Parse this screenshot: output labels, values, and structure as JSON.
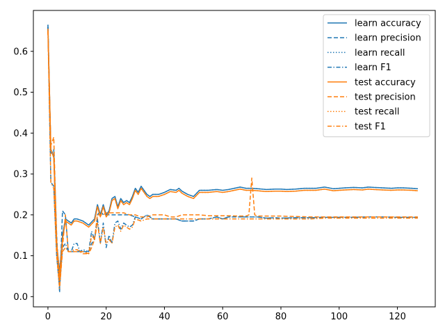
{
  "chart_data": {
    "type": "line",
    "title": "",
    "xlabel": "",
    "ylabel": "",
    "xlim": [
      -5,
      133
    ],
    "ylim": [
      -0.025,
      0.7
    ],
    "xticks": [
      0,
      20,
      40,
      60,
      80,
      100,
      120
    ],
    "yticks": [
      0.0,
      0.1,
      0.2,
      0.3,
      0.4,
      0.5,
      0.6
    ],
    "grid": false,
    "legend_position": "top-right",
    "colors": {
      "learn": "#1f77b4",
      "test": "#ff7f0e"
    },
    "series": [
      {
        "name": "learn accuracy",
        "color": "#1f77b4",
        "style": "solid",
        "x": [
          0,
          1,
          2,
          3,
          4,
          5,
          6,
          7,
          8,
          9,
          10,
          12,
          14,
          16,
          17,
          18,
          19,
          20,
          21,
          22,
          23,
          24,
          25,
          26,
          27,
          28,
          29,
          30,
          31,
          32,
          33,
          34,
          35,
          36,
          38,
          40,
          42,
          44,
          45,
          46,
          48,
          50,
          52,
          55,
          58,
          60,
          62,
          64,
          66,
          68,
          70,
          72,
          75,
          78,
          80,
          82,
          85,
          88,
          90,
          92,
          95,
          98,
          100,
          102,
          105,
          108,
          110,
          112,
          115,
          118,
          120,
          122,
          125,
          127
        ],
        "y": [
          0.665,
          0.36,
          0.345,
          0.13,
          0.06,
          0.15,
          0.19,
          0.185,
          0.18,
          0.19,
          0.19,
          0.185,
          0.175,
          0.19,
          0.225,
          0.2,
          0.225,
          0.2,
          0.21,
          0.24,
          0.245,
          0.22,
          0.24,
          0.23,
          0.235,
          0.23,
          0.245,
          0.265,
          0.255,
          0.27,
          0.26,
          0.25,
          0.245,
          0.25,
          0.25,
          0.255,
          0.262,
          0.26,
          0.265,
          0.258,
          0.25,
          0.245,
          0.26,
          0.26,
          0.262,
          0.26,
          0.262,
          0.265,
          0.268,
          0.265,
          0.265,
          0.264,
          0.262,
          0.263,
          0.263,
          0.262,
          0.263,
          0.265,
          0.265,
          0.265,
          0.268,
          0.264,
          0.265,
          0.266,
          0.267,
          0.266,
          0.268,
          0.267,
          0.266,
          0.265,
          0.266,
          0.266,
          0.265,
          0.264
        ]
      },
      {
        "name": "learn precision",
        "color": "#1f77b4",
        "style": "dashed",
        "x": [
          0,
          1,
          2,
          3,
          4,
          5,
          6,
          7,
          8,
          10,
          12,
          14,
          15,
          16,
          17,
          18,
          19,
          20,
          22,
          24,
          26,
          28,
          30,
          32,
          34,
          36,
          38,
          40,
          42,
          44,
          46,
          48,
          50,
          52,
          55,
          58,
          60,
          62,
          65,
          68,
          70,
          72,
          75,
          78,
          80,
          85,
          90,
          95,
          100,
          105,
          110,
          115,
          120,
          125,
          127
        ],
        "y": [
          0.66,
          0.35,
          0.36,
          0.15,
          0.01,
          0.21,
          0.2,
          0.11,
          0.11,
          0.11,
          0.11,
          0.11,
          0.13,
          0.14,
          0.2,
          0.21,
          0.2,
          0.2,
          0.2,
          0.2,
          0.2,
          0.2,
          0.195,
          0.19,
          0.2,
          0.19,
          0.19,
          0.19,
          0.19,
          0.19,
          0.185,
          0.185,
          0.185,
          0.19,
          0.19,
          0.195,
          0.19,
          0.195,
          0.195,
          0.195,
          0.195,
          0.195,
          0.192,
          0.193,
          0.192,
          0.193,
          0.193,
          0.194,
          0.194,
          0.194,
          0.195,
          0.195,
          0.194,
          0.194,
          0.194
        ]
      },
      {
        "name": "learn recall",
        "color": "#1f77b4",
        "style": "dotted",
        "x": [
          0,
          1,
          2,
          3,
          4,
          5,
          6,
          7,
          8,
          9,
          10,
          12,
          14,
          16,
          17,
          18,
          19,
          20,
          21,
          22,
          23,
          24,
          25,
          26,
          27,
          28,
          29,
          30,
          31,
          32,
          33,
          34,
          35,
          36,
          38,
          40,
          42,
          44,
          45,
          46,
          48,
          50,
          52,
          55,
          58,
          60,
          62,
          64,
          66,
          68,
          70,
          72,
          75,
          78,
          80,
          82,
          85,
          88,
          90,
          92,
          95,
          98,
          100,
          102,
          105,
          108,
          110,
          112,
          115,
          118,
          120,
          122,
          125,
          127
        ],
        "y": [
          0.665,
          0.36,
          0.345,
          0.13,
          0.06,
          0.15,
          0.19,
          0.185,
          0.18,
          0.19,
          0.19,
          0.185,
          0.175,
          0.19,
          0.225,
          0.2,
          0.225,
          0.2,
          0.21,
          0.24,
          0.245,
          0.22,
          0.24,
          0.23,
          0.235,
          0.23,
          0.245,
          0.265,
          0.255,
          0.27,
          0.26,
          0.25,
          0.245,
          0.25,
          0.25,
          0.255,
          0.262,
          0.26,
          0.265,
          0.258,
          0.25,
          0.245,
          0.26,
          0.26,
          0.262,
          0.26,
          0.262,
          0.265,
          0.268,
          0.265,
          0.265,
          0.264,
          0.262,
          0.263,
          0.263,
          0.262,
          0.263,
          0.265,
          0.265,
          0.265,
          0.268,
          0.264,
          0.265,
          0.266,
          0.267,
          0.266,
          0.268,
          0.267,
          0.266,
          0.265,
          0.266,
          0.266,
          0.265,
          0.264
        ]
      },
      {
        "name": "learn F1",
        "color": "#1f77b4",
        "style": "dashdot",
        "x": [
          0,
          1,
          2,
          3,
          4,
          5,
          6,
          7,
          8,
          9,
          10,
          11,
          12,
          14,
          15,
          16,
          17,
          18,
          19,
          20,
          21,
          22,
          23,
          24,
          25,
          26,
          27,
          28,
          29,
          30,
          32,
          34,
          36,
          38,
          40,
          42,
          44,
          46,
          48,
          50,
          52,
          55,
          58,
          60,
          62,
          65,
          68,
          70,
          72,
          75,
          78,
          80,
          85,
          90,
          95,
          100,
          105,
          110,
          115,
          120,
          125,
          127
        ],
        "y": [
          0.66,
          0.28,
          0.27,
          0.1,
          0.02,
          0.12,
          0.13,
          0.11,
          0.11,
          0.13,
          0.13,
          0.11,
          0.115,
          0.11,
          0.16,
          0.14,
          0.19,
          0.13,
          0.18,
          0.12,
          0.15,
          0.13,
          0.18,
          0.185,
          0.165,
          0.18,
          0.175,
          0.17,
          0.175,
          0.195,
          0.19,
          0.2,
          0.19,
          0.19,
          0.19,
          0.19,
          0.19,
          0.185,
          0.185,
          0.185,
          0.19,
          0.19,
          0.195,
          0.19,
          0.195,
          0.195,
          0.195,
          0.195,
          0.195,
          0.192,
          0.193,
          0.192,
          0.193,
          0.193,
          0.194,
          0.194,
          0.194,
          0.195,
          0.195,
          0.194,
          0.194,
          0.194
        ]
      },
      {
        "name": "test accuracy",
        "color": "#ff7f0e",
        "style": "solid",
        "x": [
          0,
          1,
          2,
          3,
          4,
          5,
          6,
          7,
          8,
          9,
          10,
          12,
          14,
          16,
          17,
          18,
          19,
          20,
          21,
          22,
          23,
          24,
          25,
          26,
          27,
          28,
          29,
          30,
          31,
          32,
          33,
          34,
          35,
          36,
          38,
          40,
          42,
          44,
          45,
          46,
          48,
          50,
          52,
          55,
          58,
          60,
          62,
          64,
          66,
          68,
          70,
          72,
          75,
          78,
          80,
          82,
          85,
          88,
          90,
          92,
          95,
          98,
          100,
          102,
          105,
          108,
          110,
          112,
          115,
          118,
          120,
          122,
          125,
          127
        ],
        "y": [
          0.655,
          0.36,
          0.34,
          0.13,
          0.05,
          0.14,
          0.185,
          0.18,
          0.175,
          0.185,
          0.185,
          0.18,
          0.17,
          0.185,
          0.22,
          0.195,
          0.22,
          0.195,
          0.205,
          0.235,
          0.24,
          0.215,
          0.235,
          0.225,
          0.23,
          0.225,
          0.24,
          0.26,
          0.25,
          0.265,
          0.255,
          0.245,
          0.24,
          0.245,
          0.245,
          0.25,
          0.257,
          0.255,
          0.26,
          0.253,
          0.245,
          0.24,
          0.255,
          0.255,
          0.257,
          0.255,
          0.257,
          0.26,
          0.263,
          0.26,
          0.26,
          0.259,
          0.257,
          0.258,
          0.258,
          0.257,
          0.258,
          0.26,
          0.26,
          0.26,
          0.263,
          0.259,
          0.26,
          0.261,
          0.262,
          0.261,
          0.263,
          0.262,
          0.261,
          0.26,
          0.261,
          0.261,
          0.26,
          0.259
        ]
      },
      {
        "name": "test precision",
        "color": "#ff7f0e",
        "style": "dashed",
        "x": [
          0,
          1,
          2,
          3,
          4,
          5,
          6,
          7,
          8,
          10,
          12,
          14,
          15,
          16,
          17,
          18,
          19,
          20,
          22,
          24,
          26,
          28,
          30,
          32,
          34,
          36,
          38,
          40,
          42,
          44,
          46,
          48,
          50,
          52,
          55,
          58,
          60,
          62,
          65,
          68,
          69,
          70,
          71,
          72,
          75,
          78,
          80,
          85,
          90,
          95,
          100,
          105,
          110,
          115,
          120,
          125,
          127
        ],
        "y": [
          0.65,
          0.37,
          0.39,
          0.14,
          0.03,
          0.12,
          0.2,
          0.11,
          0.11,
          0.11,
          0.11,
          0.105,
          0.12,
          0.14,
          0.2,
          0.2,
          0.2,
          0.205,
          0.205,
          0.205,
          0.205,
          0.2,
          0.2,
          0.195,
          0.195,
          0.2,
          0.2,
          0.2,
          0.195,
          0.195,
          0.2,
          0.2,
          0.2,
          0.2,
          0.198,
          0.198,
          0.198,
          0.198,
          0.197,
          0.197,
          0.2,
          0.29,
          0.2,
          0.197,
          0.197,
          0.197,
          0.197,
          0.196,
          0.195,
          0.195,
          0.195,
          0.195,
          0.195,
          0.195,
          0.195,
          0.195,
          0.195
        ]
      },
      {
        "name": "test recall",
        "color": "#ff7f0e",
        "style": "dotted",
        "x": [
          0,
          1,
          2,
          3,
          4,
          5,
          6,
          7,
          8,
          9,
          10,
          12,
          14,
          16,
          17,
          18,
          19,
          20,
          21,
          22,
          23,
          24,
          25,
          26,
          27,
          28,
          29,
          30,
          31,
          32,
          33,
          34,
          35,
          36,
          38,
          40,
          42,
          44,
          45,
          46,
          48,
          50,
          52,
          55,
          58,
          60,
          62,
          64,
          66,
          68,
          70,
          72,
          75,
          78,
          80,
          82,
          85,
          88,
          90,
          92,
          95,
          98,
          100,
          102,
          105,
          108,
          110,
          112,
          115,
          118,
          120,
          122,
          125,
          127
        ],
        "y": [
          0.655,
          0.36,
          0.34,
          0.13,
          0.05,
          0.14,
          0.185,
          0.18,
          0.175,
          0.185,
          0.185,
          0.18,
          0.17,
          0.185,
          0.22,
          0.195,
          0.22,
          0.195,
          0.205,
          0.235,
          0.24,
          0.215,
          0.235,
          0.225,
          0.23,
          0.225,
          0.24,
          0.26,
          0.25,
          0.265,
          0.255,
          0.245,
          0.24,
          0.245,
          0.245,
          0.25,
          0.257,
          0.255,
          0.26,
          0.253,
          0.245,
          0.24,
          0.255,
          0.255,
          0.257,
          0.255,
          0.257,
          0.26,
          0.263,
          0.26,
          0.26,
          0.259,
          0.257,
          0.258,
          0.258,
          0.257,
          0.258,
          0.26,
          0.26,
          0.26,
          0.263,
          0.259,
          0.26,
          0.261,
          0.262,
          0.261,
          0.263,
          0.262,
          0.261,
          0.26,
          0.261,
          0.261,
          0.26,
          0.259
        ]
      },
      {
        "name": "test F1",
        "color": "#ff7f0e",
        "style": "dashdot",
        "x": [
          0,
          1,
          2,
          3,
          4,
          5,
          6,
          7,
          8,
          9,
          10,
          11,
          12,
          14,
          15,
          16,
          17,
          18,
          19,
          20,
          21,
          22,
          23,
          24,
          25,
          26,
          27,
          28,
          29,
          30,
          32,
          34,
          36,
          38,
          40,
          42,
          44,
          46,
          48,
          50,
          52,
          55,
          58,
          60,
          62,
          65,
          68,
          70,
          72,
          75,
          78,
          80,
          85,
          90,
          95,
          100,
          105,
          110,
          115,
          120,
          125,
          127
        ],
        "y": [
          0.65,
          0.28,
          0.265,
          0.1,
          0.02,
          0.11,
          0.12,
          0.11,
          0.11,
          0.115,
          0.115,
          0.11,
          0.105,
          0.105,
          0.15,
          0.14,
          0.18,
          0.13,
          0.17,
          0.13,
          0.14,
          0.13,
          0.17,
          0.175,
          0.16,
          0.175,
          0.17,
          0.165,
          0.17,
          0.19,
          0.185,
          0.19,
          0.19,
          0.19,
          0.19,
          0.19,
          0.19,
          0.19,
          0.19,
          0.19,
          0.19,
          0.19,
          0.19,
          0.19,
          0.19,
          0.19,
          0.19,
          0.19,
          0.19,
          0.19,
          0.19,
          0.19,
          0.19,
          0.19,
          0.192,
          0.192,
          0.192,
          0.192,
          0.192,
          0.192,
          0.192,
          0.192
        ]
      }
    ]
  }
}
